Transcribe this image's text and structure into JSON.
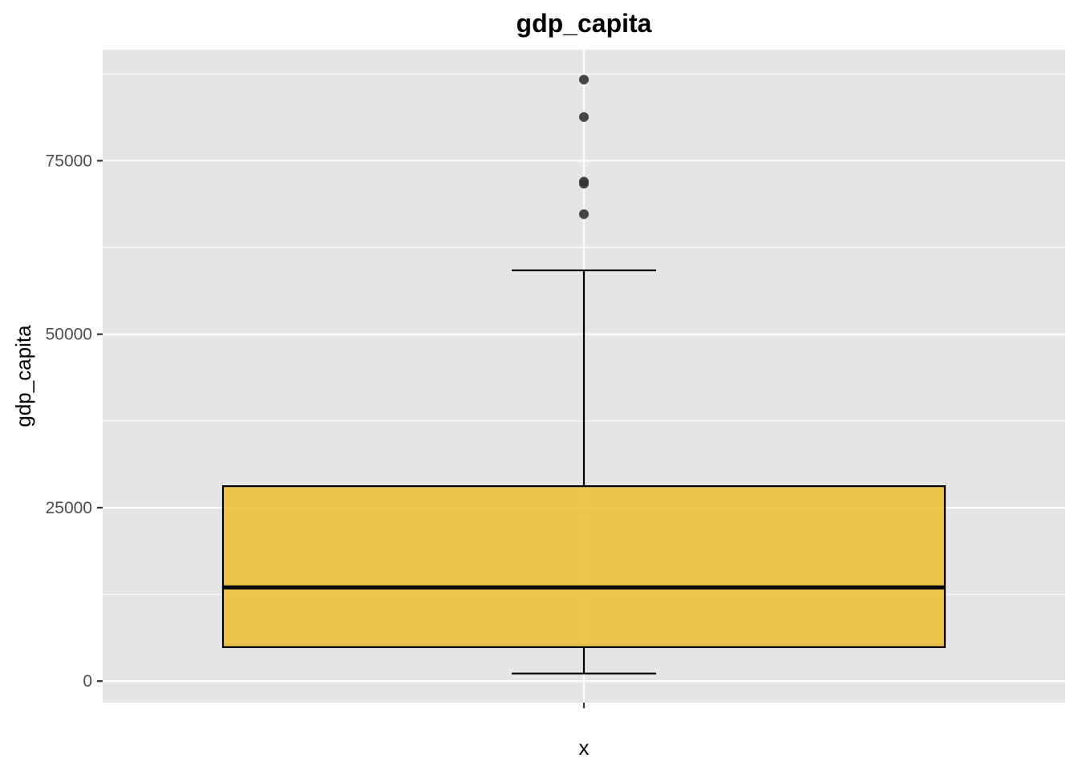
{
  "chart_data": {
    "type": "boxplot",
    "title": "gdp_capita",
    "xlabel": "x",
    "ylabel": "gdp_capita",
    "categories": [
      ""
    ],
    "ylim": [
      -3100,
      91000
    ],
    "y_ticks": [
      0,
      25000,
      50000,
      75000
    ],
    "y_tick_labels": [
      "0",
      "25000",
      "50000",
      "75000"
    ],
    "grid": true,
    "legend": "none",
    "boxes": [
      {
        "category": "",
        "whisker_low": 1100,
        "q1": 4900,
        "median": 13500,
        "q3": 28100,
        "whisker_high": 59200,
        "outliers": [
          86700,
          81300,
          72000,
          71700,
          67300
        ]
      }
    ],
    "colors": {
      "fill": "#EBC02F",
      "fill_opacity": 0.85,
      "panel_background": "#E5E5E5",
      "grid": "#FFFFFF",
      "outline": "#000000",
      "outlier": "#333333"
    }
  }
}
